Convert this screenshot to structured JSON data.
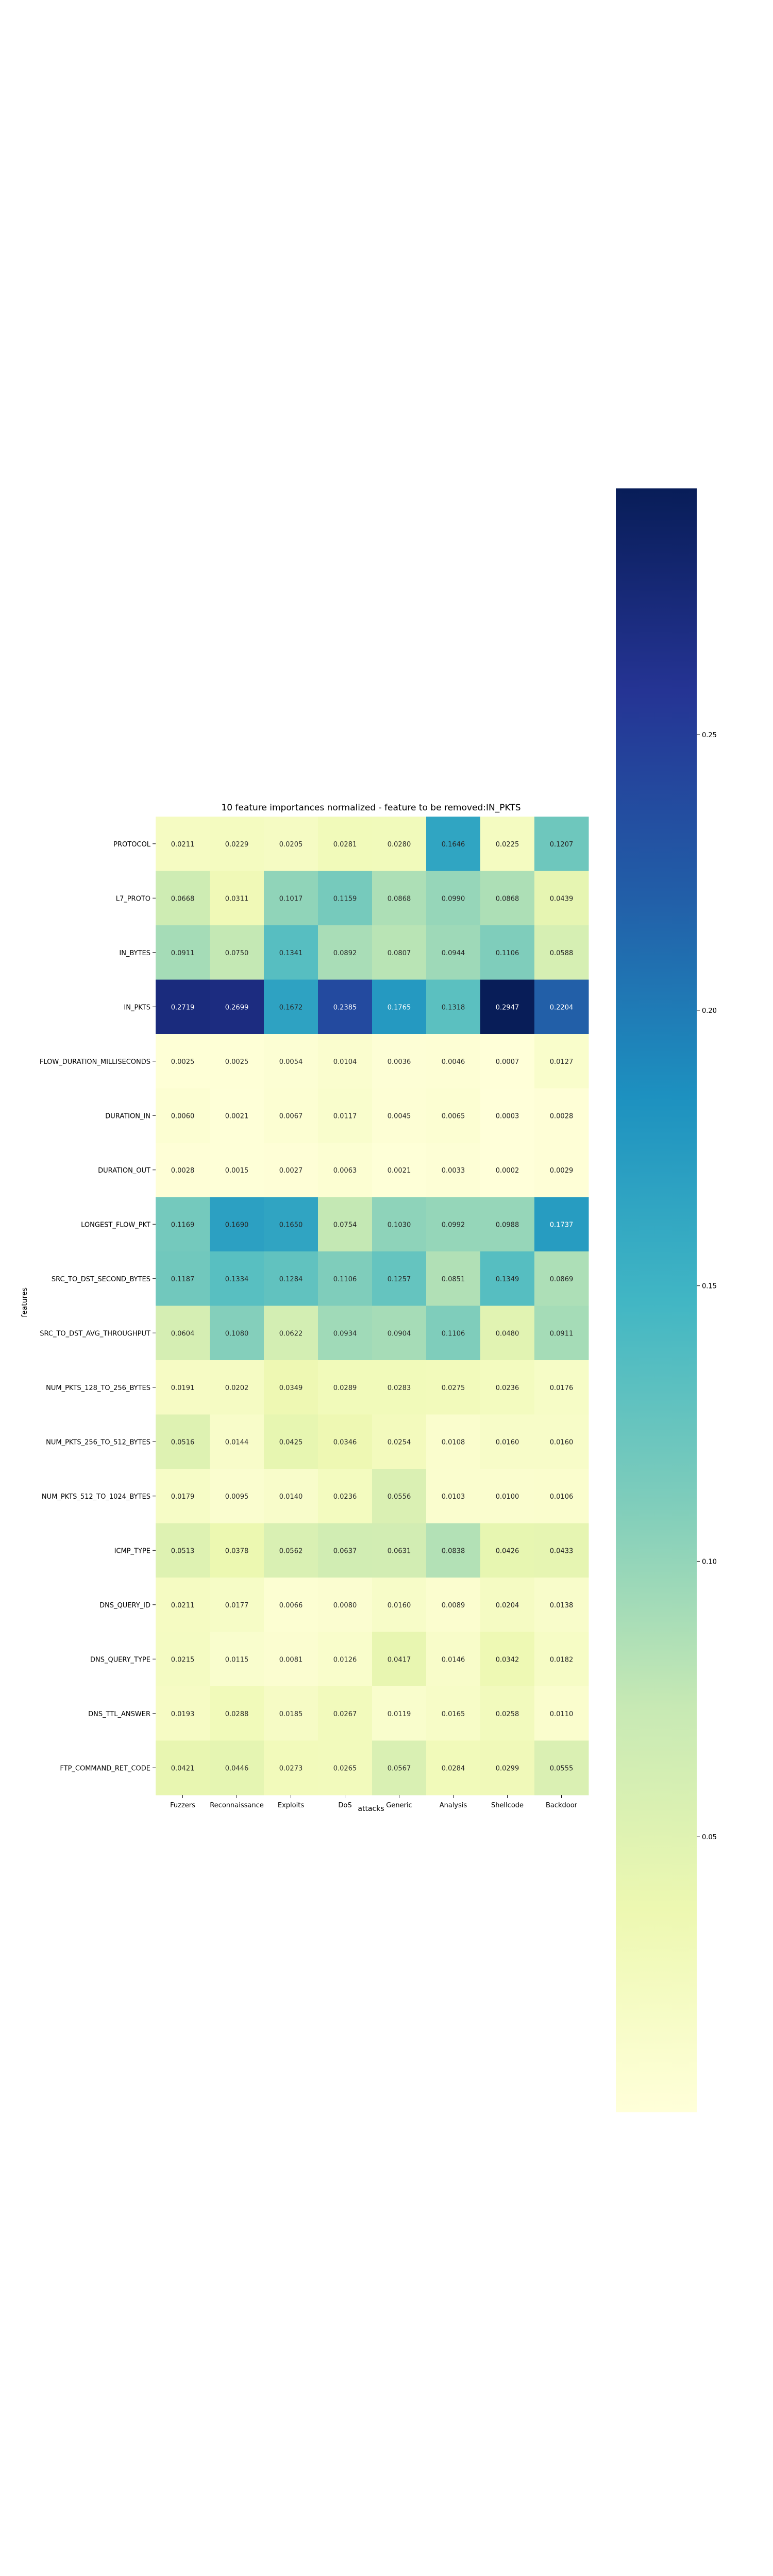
{
  "chart_data": {
    "type": "heatmap",
    "title": "10 feature importances normalized - feature to be removed:IN_PKTS",
    "xlabel": "attacks",
    "ylabel": "features",
    "columns": [
      "Fuzzers",
      "Reconnaissance",
      "Exploits",
      "DoS",
      "Generic",
      "Analysis",
      "Shellcode",
      "Backdoor"
    ],
    "rows": [
      "PROTOCOL",
      "L7_PROTO",
      "IN_BYTES",
      "IN_PKTS",
      "FLOW_DURATION_MILLISECONDS",
      "DURATION_IN",
      "DURATION_OUT",
      "LONGEST_FLOW_PKT",
      "SRC_TO_DST_SECOND_BYTES",
      "SRC_TO_DST_AVG_THROUGHPUT",
      "NUM_PKTS_128_TO_256_BYTES",
      "NUM_PKTS_256_TO_512_BYTES",
      "NUM_PKTS_512_TO_1024_BYTES",
      "ICMP_TYPE",
      "DNS_QUERY_ID",
      "DNS_QUERY_TYPE",
      "DNS_TTL_ANSWER",
      "FTP_COMMAND_RET_CODE"
    ],
    "values": [
      [
        0.0211,
        0.0229,
        0.0205,
        0.0281,
        0.028,
        0.1646,
        0.0225,
        0.1207
      ],
      [
        0.0668,
        0.0311,
        0.1017,
        0.1159,
        0.0868,
        0.099,
        0.0868,
        0.0439
      ],
      [
        0.0911,
        0.075,
        0.1341,
        0.0892,
        0.0807,
        0.0944,
        0.1106,
        0.0588
      ],
      [
        0.2719,
        0.2699,
        0.1672,
        0.2385,
        0.1765,
        0.1318,
        0.2947,
        0.2204
      ],
      [
        0.0025,
        0.0025,
        0.0054,
        0.0104,
        0.0036,
        0.0046,
        0.0007,
        0.0127
      ],
      [
        0.006,
        0.0021,
        0.0067,
        0.0117,
        0.0045,
        0.0065,
        0.0003,
        0.0028
      ],
      [
        0.0028,
        0.0015,
        0.0027,
        0.0063,
        0.0021,
        0.0033,
        0.0002,
        0.0029
      ],
      [
        0.1169,
        0.169,
        0.165,
        0.0754,
        0.103,
        0.0992,
        0.0988,
        0.1737
      ],
      [
        0.1187,
        0.1334,
        0.1284,
        0.1106,
        0.1257,
        0.0851,
        0.1349,
        0.0869
      ],
      [
        0.0604,
        0.108,
        0.0622,
        0.0934,
        0.0904,
        0.1106,
        0.048,
        0.0911
      ],
      [
        0.0191,
        0.0202,
        0.0349,
        0.0289,
        0.0283,
        0.0275,
        0.0236,
        0.0176
      ],
      [
        0.0516,
        0.0144,
        0.0425,
        0.0346,
        0.0254,
        0.0108,
        0.016,
        0.016
      ],
      [
        0.0179,
        0.0095,
        0.014,
        0.0236,
        0.0556,
        0.0103,
        0.01,
        0.0106
      ],
      [
        0.0513,
        0.0378,
        0.0562,
        0.0637,
        0.0631,
        0.0838,
        0.0426,
        0.0433
      ],
      [
        0.0211,
        0.0177,
        0.0066,
        0.008,
        0.016,
        0.0089,
        0.0204,
        0.0138
      ],
      [
        0.0215,
        0.0115,
        0.0081,
        0.0126,
        0.0417,
        0.0146,
        0.0342,
        0.0182
      ],
      [
        0.0193,
        0.0288,
        0.0185,
        0.0267,
        0.0119,
        0.0165,
        0.0258,
        0.011
      ],
      [
        0.0421,
        0.0446,
        0.0273,
        0.0265,
        0.0567,
        0.0284,
        0.0299,
        0.0555
      ]
    ],
    "colormap": "YlGnBu",
    "colorbar": {
      "range": [
        0,
        0.2947
      ],
      "ticks": [
        0.05,
        0.1,
        0.15,
        0.2,
        0.25
      ],
      "tick_labels": [
        "0.05",
        "0.10",
        "0.15",
        "0.20",
        "0.25"
      ]
    },
    "annotations": true,
    "grid": false
  }
}
